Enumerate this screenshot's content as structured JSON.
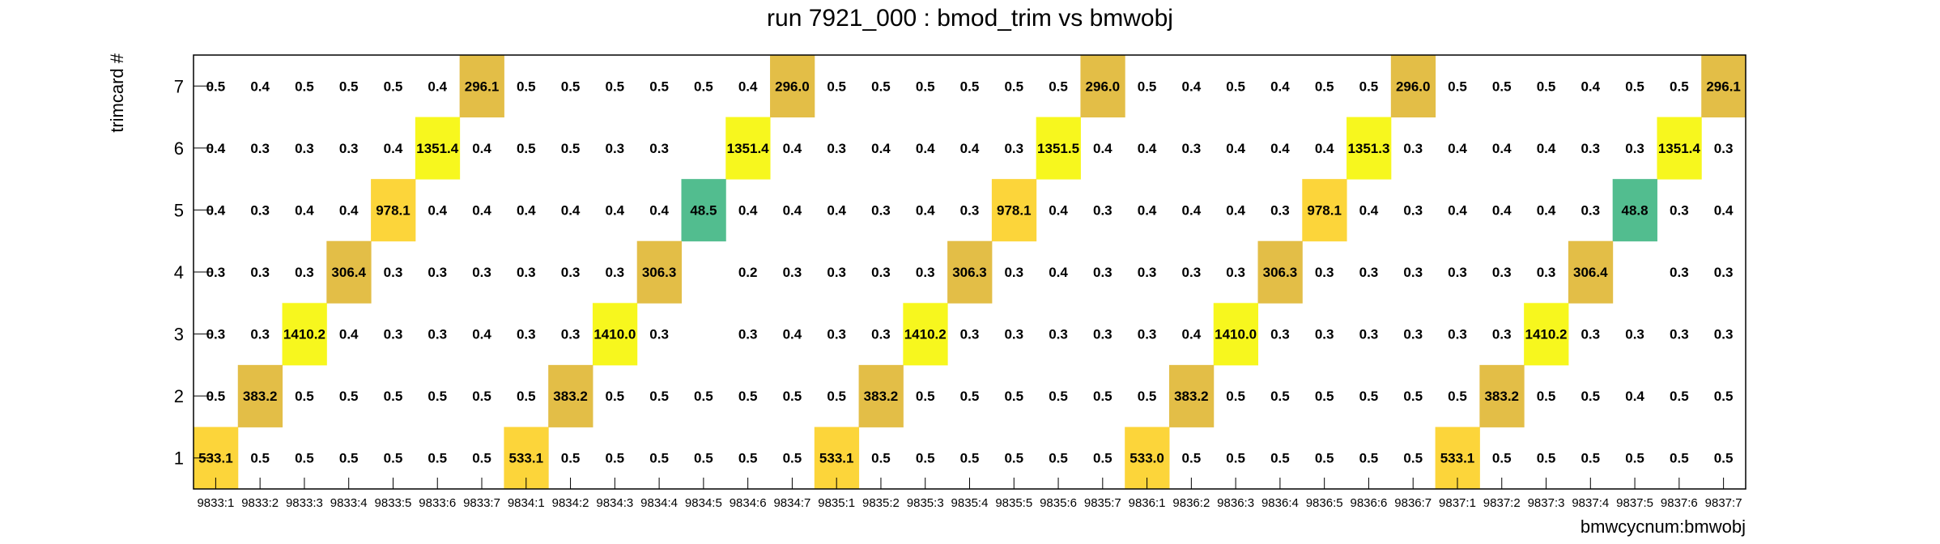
{
  "chart_data": {
    "type": "heatmap",
    "title": "run 7921_000 : bmod_trim vs bmwobj",
    "xlabel": "bmwcycnum:bmwobj",
    "ylabel": "trimcard #",
    "x_categories": [
      "9833:1",
      "9833:2",
      "9833:3",
      "9833:4",
      "9833:5",
      "9833:6",
      "9833:7",
      "9834:1",
      "9834:2",
      "9834:3",
      "9834:4",
      "9834:5",
      "9834:6",
      "9834:7",
      "9835:1",
      "9835:2",
      "9835:3",
      "9835:4",
      "9835:5",
      "9835:6",
      "9835:7",
      "9836:1",
      "9836:2",
      "9836:3",
      "9836:4",
      "9836:5",
      "9836:6",
      "9836:7",
      "9837:1",
      "9837:2",
      "9837:3",
      "9837:4",
      "9837:5",
      "9837:6",
      "9837:7"
    ],
    "y_categories": [
      "1",
      "2",
      "3",
      "4",
      "5",
      "6",
      "7"
    ],
    "colors": {
      "high_yellow": "#f7f71e",
      "mid_yellow": "#fcd53a",
      "gold": "#e3be47",
      "green": "#52bd8f"
    },
    "rows": [
      {
        "y": "7",
        "values": [
          "0.5",
          "0.4",
          "0.5",
          "0.5",
          "0.5",
          "0.4",
          "296.1",
          "0.5",
          "0.5",
          "0.5",
          "0.5",
          "0.5",
          "0.4",
          "296.0",
          "0.5",
          "0.5",
          "0.5",
          "0.5",
          "0.5",
          "0.5",
          "296.0",
          "0.5",
          "0.4",
          "0.5",
          "0.4",
          "0.5",
          "0.5",
          "296.0",
          "0.5",
          "0.5",
          "0.5",
          "0.4",
          "0.5",
          "0.5",
          "296.1"
        ]
      },
      {
        "y": "6",
        "values": [
          "0.4",
          "0.3",
          "0.3",
          "0.3",
          "0.4",
          "1351.4",
          "0.4",
          "0.5",
          "0.5",
          "0.3",
          "0.3",
          "",
          "1351.4",
          "0.4",
          "0.3",
          "0.4",
          "0.4",
          "0.4",
          "0.3",
          "1351.5",
          "0.4",
          "0.4",
          "0.3",
          "0.4",
          "0.4",
          "0.4",
          "1351.3",
          "0.3",
          "0.4",
          "0.4",
          "0.4",
          "0.3",
          "0.3",
          "1351.4",
          "0.3"
        ]
      },
      {
        "y": "5",
        "values": [
          "0.4",
          "0.3",
          "0.4",
          "0.4",
          "978.1",
          "0.4",
          "0.4",
          "0.4",
          "0.4",
          "0.4",
          "0.4",
          "48.5",
          "0.4",
          "0.4",
          "0.4",
          "0.3",
          "0.4",
          "0.3",
          "978.1",
          "0.4",
          "0.3",
          "0.4",
          "0.4",
          "0.4",
          "0.3",
          "978.1",
          "0.4",
          "0.3",
          "0.4",
          "0.4",
          "0.4",
          "0.3",
          "48.8",
          "0.3",
          "0.4"
        ]
      },
      {
        "y": "4",
        "values": [
          "0.3",
          "0.3",
          "0.3",
          "306.4",
          "0.3",
          "0.3",
          "0.3",
          "0.3",
          "0.3",
          "0.3",
          "306.3",
          "",
          "0.2",
          "0.3",
          "0.3",
          "0.3",
          "0.3",
          "306.3",
          "0.3",
          "0.4",
          "0.3",
          "0.3",
          "0.3",
          "0.3",
          "306.3",
          "0.3",
          "0.3",
          "0.3",
          "0.3",
          "0.3",
          "0.3",
          "306.4",
          "",
          "0.3",
          "0.3"
        ]
      },
      {
        "y": "3",
        "values": [
          "0.3",
          "0.3",
          "1410.2",
          "0.4",
          "0.3",
          "0.3",
          "0.4",
          "0.3",
          "0.3",
          "1410.0",
          "0.3",
          "",
          "0.3",
          "0.4",
          "0.3",
          "0.3",
          "1410.2",
          "0.3",
          "0.3",
          "0.3",
          "0.3",
          "0.3",
          "0.4",
          "1410.0",
          "0.3",
          "0.3",
          "0.3",
          "0.3",
          "0.3",
          "0.3",
          "1410.2",
          "0.3",
          "0.3",
          "0.3",
          "0.3"
        ]
      },
      {
        "y": "2",
        "values": [
          "0.5",
          "383.2",
          "0.5",
          "0.5",
          "0.5",
          "0.5",
          "0.5",
          "0.5",
          "383.2",
          "0.5",
          "0.5",
          "0.5",
          "0.5",
          "0.5",
          "0.5",
          "383.2",
          "0.5",
          "0.5",
          "0.5",
          "0.5",
          "0.5",
          "0.5",
          "383.2",
          "0.5",
          "0.5",
          "0.5",
          "0.5",
          "0.5",
          "0.5",
          "383.2",
          "0.5",
          "0.5",
          "0.4",
          "0.5",
          "0.5"
        ]
      },
      {
        "y": "1",
        "values": [
          "533.1",
          "0.5",
          "0.5",
          "0.5",
          "0.5",
          "0.5",
          "0.5",
          "533.1",
          "0.5",
          "0.5",
          "0.5",
          "0.5",
          "0.5",
          "0.5",
          "533.1",
          "0.5",
          "0.5",
          "0.5",
          "0.5",
          "0.5",
          "0.5",
          "533.0",
          "0.5",
          "0.5",
          "0.5",
          "0.5",
          "0.5",
          "0.5",
          "533.1",
          "0.5",
          "0.5",
          "0.5",
          "0.5",
          "0.5",
          "0.5"
        ]
      }
    ],
    "grid": false,
    "legend": "none"
  }
}
